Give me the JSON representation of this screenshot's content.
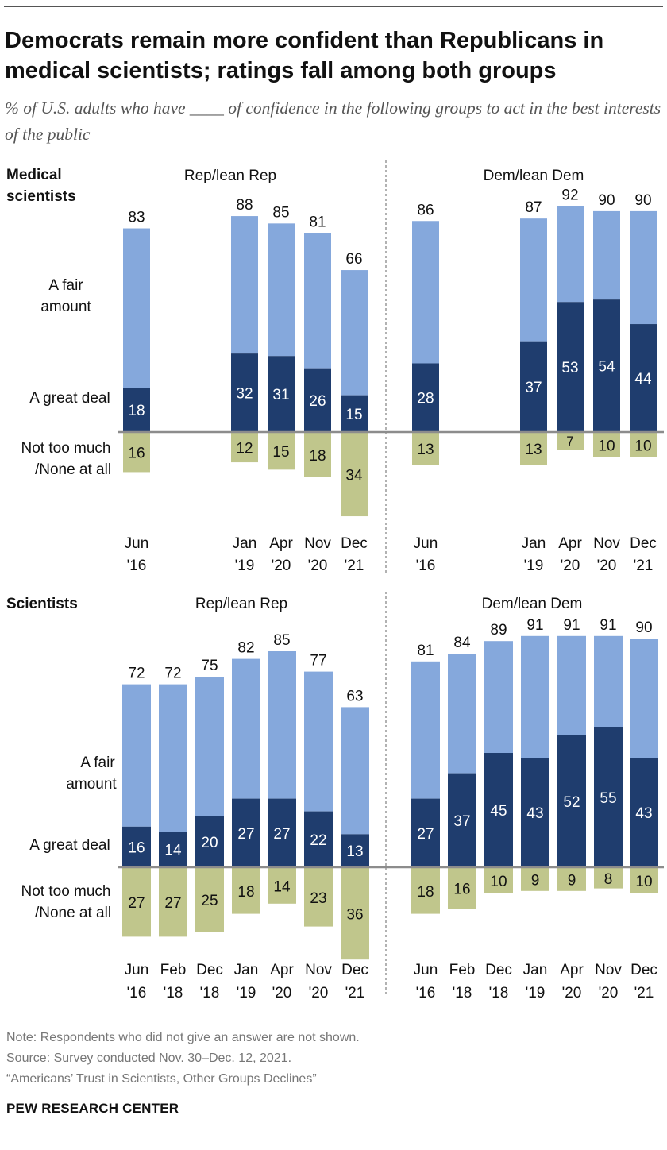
{
  "title": "Democrats remain more confident than Republicans in medical scientists; ratings fall among both groups",
  "subtitle": "% of U.S. adults who have ____ of confidence in the following groups to act in the best interests of the public",
  "notes": {
    "note": "Note: Respondents who did not give an answer are not shown.",
    "source": "Source: Survey conducted Nov. 30–Dec. 12, 2021.",
    "report": "“Americans’ Trust in Scientists, Other Groups Declines”"
  },
  "brand": "PEW RESEARCH CENTER",
  "colors": {
    "great_deal": "#1f3d6e",
    "fair_amount": "#85a8dc",
    "not_too_much": "#c0c68c",
    "axis": "#8c8c8c",
    "divider": "#999999"
  },
  "chart_data": [
    {
      "type": "bar",
      "stacked": "diverging",
      "row_label": "Medical scientists",
      "category_labels": {
        "fair": "A fair amount",
        "great": "A great deal",
        "neg": "Not too much /None at all"
      },
      "panels": [
        {
          "name": "Rep/lean Rep",
          "bars": [
            {
              "x": [
                "Jun",
                "'16"
              ],
              "total": 83,
              "great": 18,
              "neg": 16
            },
            {
              "x": [
                "Jan",
                "'19"
              ],
              "total": 88,
              "great": 32,
              "neg": 12
            },
            {
              "x": [
                "Apr",
                "'20"
              ],
              "total": 85,
              "great": 31,
              "neg": 15
            },
            {
              "x": [
                "Nov",
                "'20"
              ],
              "total": 81,
              "great": 26,
              "neg": 18
            },
            {
              "x": [
                "Dec",
                "'21"
              ],
              "total": 66,
              "great": 15,
              "neg": 34
            }
          ]
        },
        {
          "name": "Dem/lean Dem",
          "bars": [
            {
              "x": [
                "Jun",
                "'16"
              ],
              "total": 86,
              "great": 28,
              "neg": 13
            },
            {
              "x": [
                "Jan",
                "'19"
              ],
              "total": 87,
              "great": 37,
              "neg": 13
            },
            {
              "x": [
                "Apr",
                "'20"
              ],
              "total": 92,
              "great": 53,
              "neg": 7
            },
            {
              "x": [
                "Nov",
                "'20"
              ],
              "total": 90,
              "great": 54,
              "neg": 10
            },
            {
              "x": [
                "Dec",
                "'21"
              ],
              "total": 90,
              "great": 44,
              "neg": 10
            }
          ]
        }
      ]
    },
    {
      "type": "bar",
      "stacked": "diverging",
      "row_label": "Scientists",
      "category_labels": {
        "fair": "A fair amount",
        "great": "A great deal",
        "neg": "Not too much /None at all"
      },
      "panels": [
        {
          "name": "Rep/lean Rep",
          "bars": [
            {
              "x": [
                "Jun",
                "'16"
              ],
              "total": 72,
              "great": 16,
              "neg": 27
            },
            {
              "x": [
                "Feb",
                "'18"
              ],
              "total": 72,
              "great": 14,
              "neg": 27
            },
            {
              "x": [
                "Dec",
                "'18"
              ],
              "total": 75,
              "great": 20,
              "neg": 25
            },
            {
              "x": [
                "Jan",
                "'19"
              ],
              "total": 82,
              "great": 27,
              "neg": 18
            },
            {
              "x": [
                "Apr",
                "'20"
              ],
              "total": 85,
              "great": 27,
              "neg": 14
            },
            {
              "x": [
                "Nov",
                "'20"
              ],
              "total": 77,
              "great": 22,
              "neg": 23
            },
            {
              "x": [
                "Dec",
                "'21"
              ],
              "total": 63,
              "great": 13,
              "neg": 36
            }
          ]
        },
        {
          "name": "Dem/lean Dem",
          "bars": [
            {
              "x": [
                "Jun",
                "'16"
              ],
              "total": 81,
              "great": 27,
              "neg": 18
            },
            {
              "x": [
                "Feb",
                "'18"
              ],
              "total": 84,
              "great": 37,
              "neg": 16
            },
            {
              "x": [
                "Dec",
                "'18"
              ],
              "total": 89,
              "great": 45,
              "neg": 10
            },
            {
              "x": [
                "Jan",
                "'19"
              ],
              "total": 91,
              "great": 43,
              "neg": 9
            },
            {
              "x": [
                "Apr",
                "'20"
              ],
              "total": 91,
              "great": 52,
              "neg": 9
            },
            {
              "x": [
                "Nov",
                "'20"
              ],
              "total": 91,
              "great": 55,
              "neg": 8
            },
            {
              "x": [
                "Dec",
                "'21"
              ],
              "total": 90,
              "great": 43,
              "neg": 10
            }
          ]
        }
      ]
    }
  ]
}
